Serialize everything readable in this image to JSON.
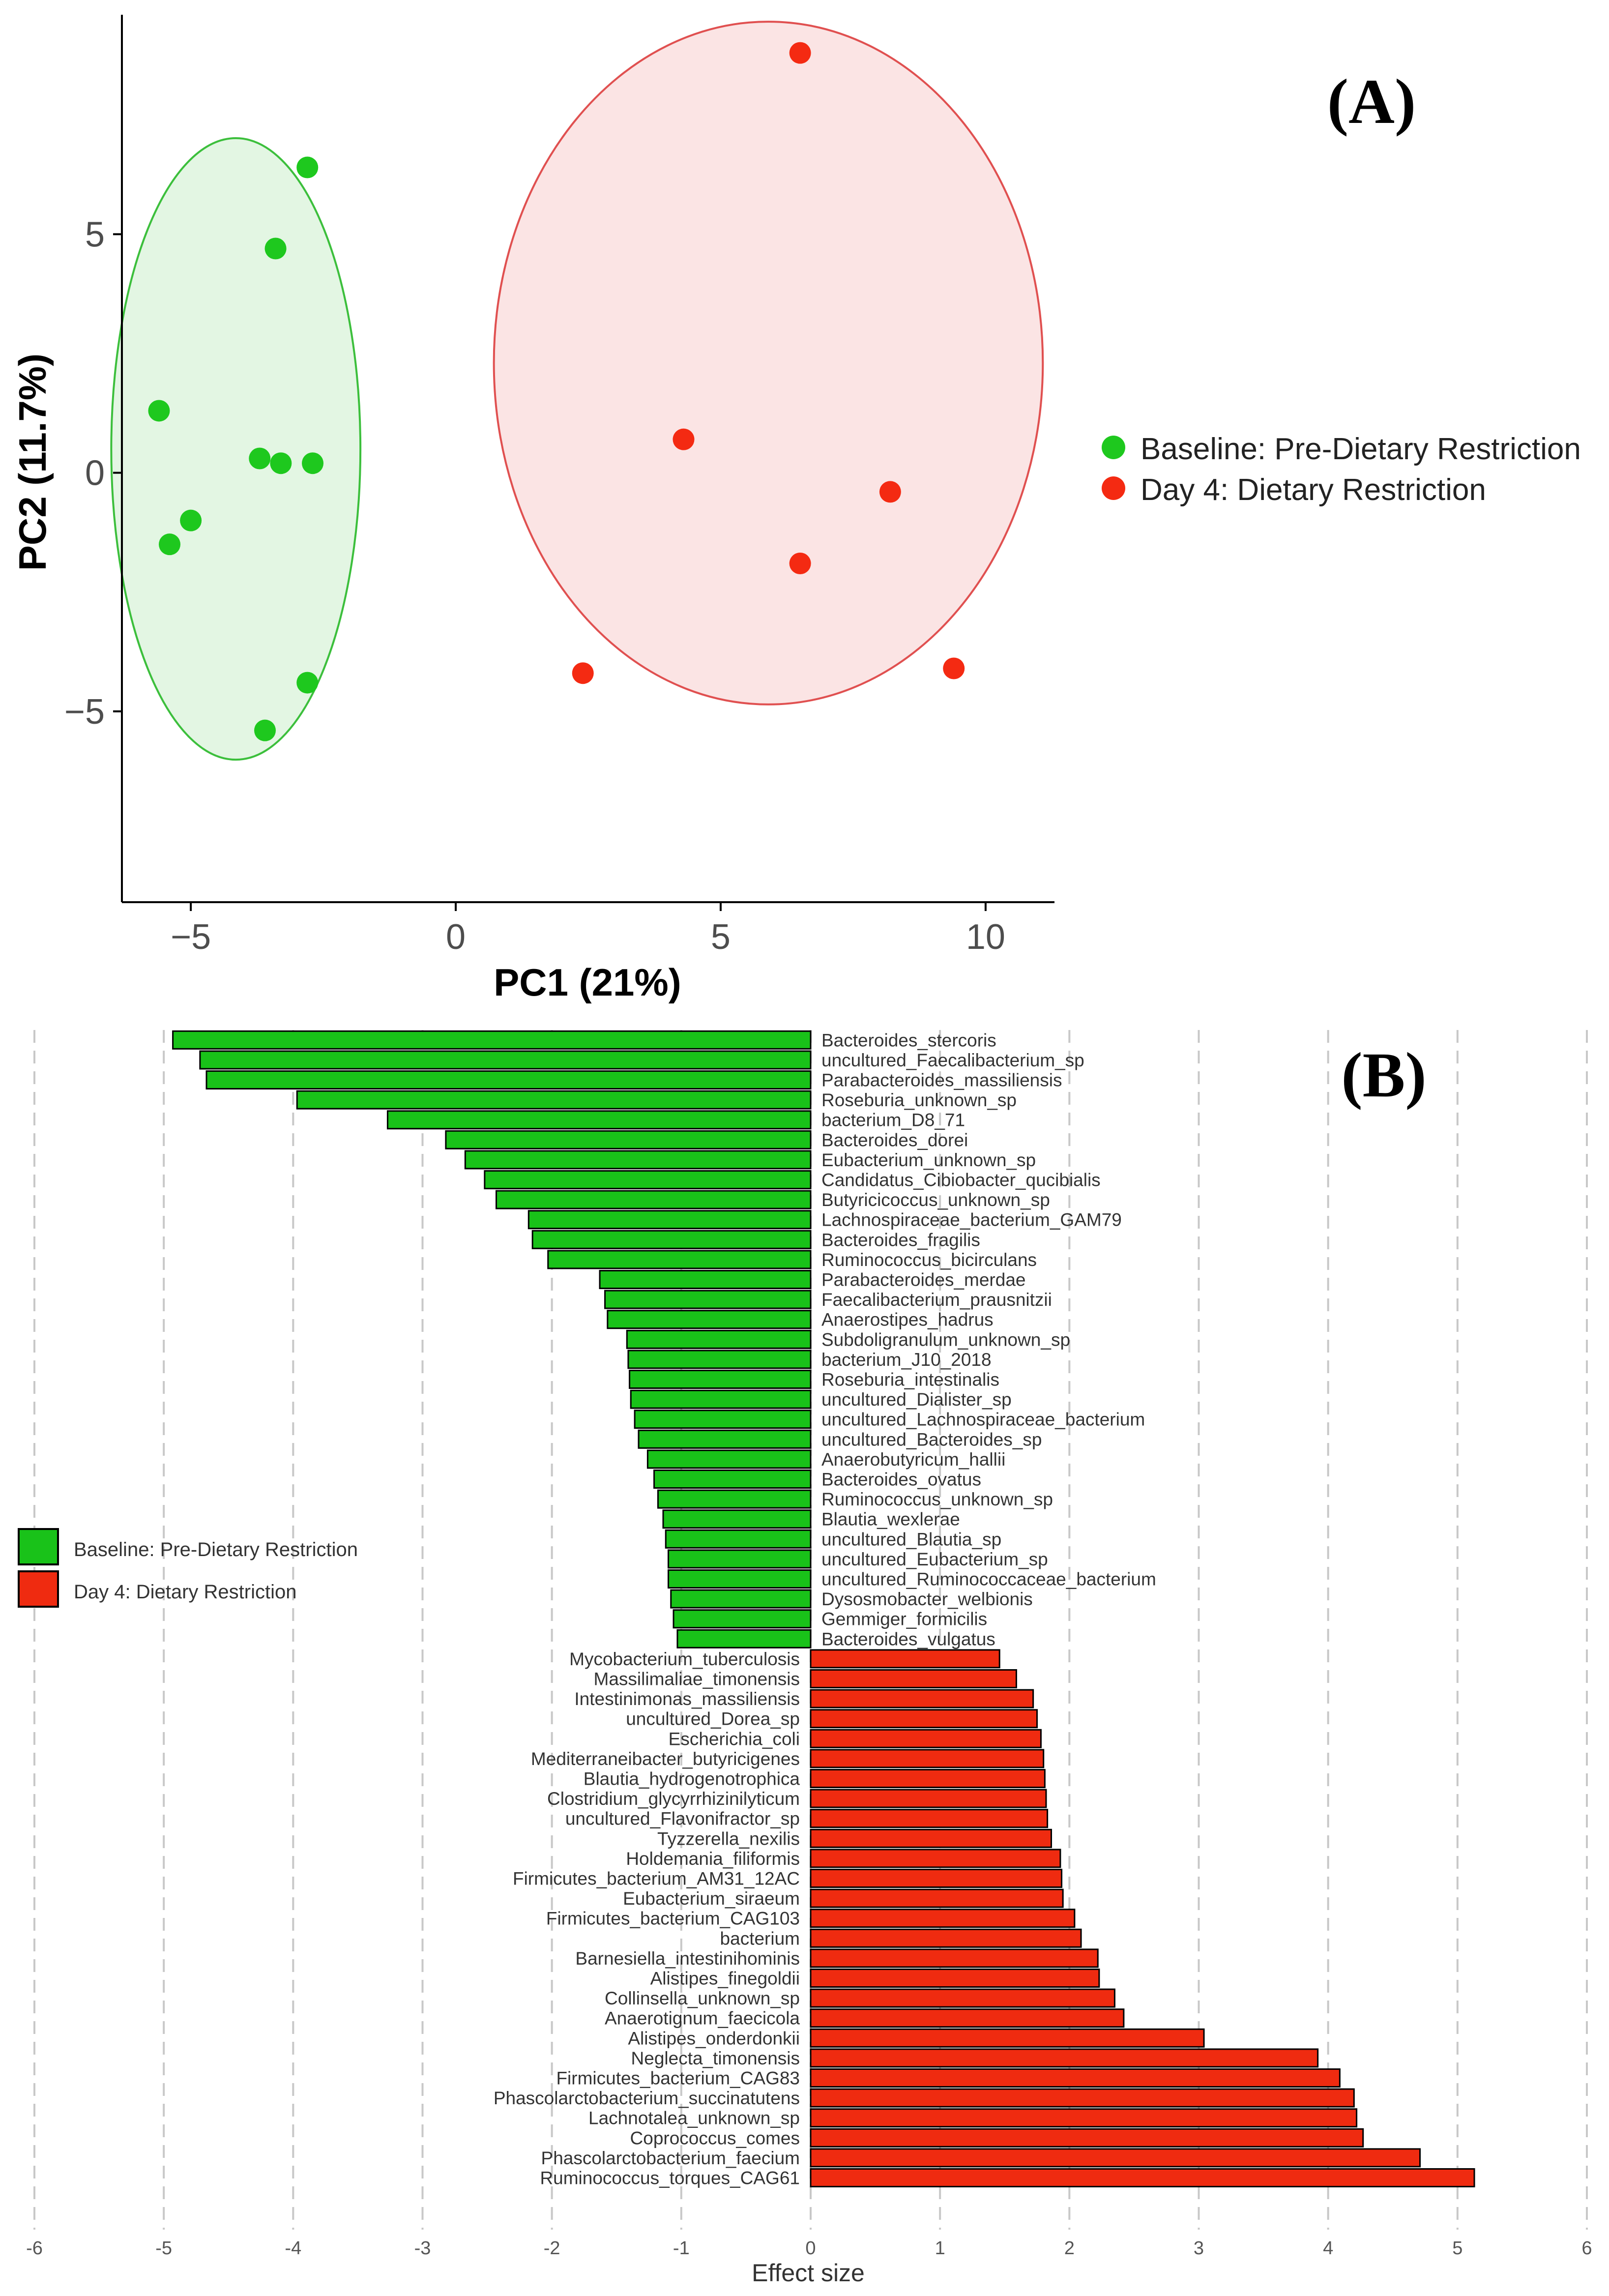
{
  "chart_data": [
    {
      "type": "scatter",
      "panel_label": "(A)",
      "xlabel": "PC1 (21%)",
      "ylabel": "PC2 (11.7%)",
      "xlim": [
        -6.3,
        11.3
      ],
      "ylim": [
        -9.0,
        9.6
      ],
      "xticks": [
        -5,
        0,
        5,
        10
      ],
      "xtick_labels": [
        "−5",
        "0",
        "5",
        "10"
      ],
      "yticks": [
        -5,
        0,
        5
      ],
      "ytick_labels": [
        "−5",
        "0",
        "5"
      ],
      "grid": false,
      "legend_position": "right",
      "series": [
        {
          "name": "Baseline: Pre-Dietary Restriction",
          "color": "#1ec81e",
          "ellipse_color": "#3cbf3c",
          "ellipse_fill": "#e3f6e3",
          "points": [
            {
              "x": -2.8,
              "y": 6.4
            },
            {
              "x": -3.4,
              "y": 4.7
            },
            {
              "x": -5.6,
              "y": 1.3
            },
            {
              "x": -3.7,
              "y": 0.3
            },
            {
              "x": -3.3,
              "y": 0.2
            },
            {
              "x": -2.7,
              "y": 0.2
            },
            {
              "x": -5.0,
              "y": -1.0
            },
            {
              "x": -5.4,
              "y": -1.5
            },
            {
              "x": -2.8,
              "y": -4.4
            },
            {
              "x": -3.6,
              "y": -5.4
            }
          ]
        },
        {
          "name": "Day 4: Dietary Restriction",
          "color": "#f42a12",
          "ellipse_color": "#e05050",
          "ellipse_fill": "#fbe4e4",
          "points": [
            {
              "x": 6.5,
              "y": 8.8
            },
            {
              "x": 4.3,
              "y": 0.7
            },
            {
              "x": 8.2,
              "y": -0.4
            },
            {
              "x": 6.5,
              "y": -1.9
            },
            {
              "x": 2.4,
              "y": -4.2
            },
            {
              "x": 9.4,
              "y": -4.1
            }
          ]
        }
      ]
    },
    {
      "type": "bar",
      "orientation": "horizontal",
      "panel_label": "(B)",
      "xlabel": "Effect size",
      "ylabel": "",
      "xlim": [
        -6,
        6
      ],
      "xticks": [
        -6,
        -5,
        -4,
        -3,
        -2,
        -1,
        0,
        1,
        2,
        3,
        4,
        5,
        6
      ],
      "grid": "vertical dashed",
      "legend_position": "left",
      "series": [
        {
          "name": "Baseline: Pre-Dietary Restriction",
          "color": "#19c219",
          "categories": [
            "Bacteroides_stercoris",
            "uncultured_Faecalibacterium_sp",
            "Parabacteroides_massiliensis",
            "Roseburia_unknown_sp",
            "bacterium_D8_71",
            "Bacteroides_dorei",
            "Eubacterium_unknown_sp",
            "Candidatus_Cibiobacter_qucibialis",
            "Butyricicoccus_unknown_sp",
            "Lachnospiraceae_bacterium_GAM79",
            "Bacteroides_fragilis",
            "Ruminococcus_bicirculans",
            "Parabacteroides_merdae",
            "Faecalibacterium_prausnitzii",
            "Anaerostipes_hadrus",
            "Subdoligranulum_unknown_sp",
            "bacterium_J10_2018",
            "Roseburia_intestinalis",
            "uncultured_Dialister_sp",
            "uncultured_Lachnospiraceae_bacterium",
            "uncultured_Bacteroides_sp",
            "Anaerobutyricum_hallii",
            "Bacteroides_ovatus",
            "Ruminococcus_unknown_sp",
            "Blautia_wexlerae",
            "uncultured_Blautia_sp",
            "uncultured_Eubacterium_sp",
            "uncultured_Ruminococcaceae_bacterium",
            "Dysosmobacter_welbionis",
            "Gemmiger_formicilis",
            "Bacteroides_vulgatus"
          ],
          "values": [
            -4.93,
            -4.72,
            -4.67,
            -3.97,
            -3.27,
            -2.82,
            -2.67,
            -2.52,
            -2.43,
            -2.18,
            -2.15,
            -2.03,
            -1.63,
            -1.59,
            -1.57,
            -1.42,
            -1.41,
            -1.4,
            -1.39,
            -1.36,
            -1.33,
            -1.26,
            -1.21,
            -1.18,
            -1.14,
            -1.12,
            -1.1,
            -1.1,
            -1.08,
            -1.06,
            -1.03
          ]
        },
        {
          "name": "Day 4: Dietary Restriction",
          "color": "#ef2b10",
          "categories": [
            "Mycobacterium_tuberculosis",
            "Massilimaliae_timonensis",
            "Intestinimonas_massiliensis",
            "uncultured_Dorea_sp",
            "Escherichia_coli",
            "Mediterraneibacter_butyricigenes",
            "Blautia_hydrogenotrophica",
            "Clostridium_glycyrrhizinilyticum",
            "uncultured_Flavonifractor_sp",
            "Tyzzerella_nexilis",
            "Holdemania_filiformis",
            "Firmicutes_bacterium_AM31_12AC",
            "Eubacterium_siraeum",
            "Firmicutes_bacterium_CAG103",
            "bacterium",
            "Barnesiella_intestinihominis",
            "Alistipes_finegoldii",
            "Collinsella_unknown_sp",
            "Anaerotignum_faecicola",
            "Alistipes_onderdonkii",
            "Neglecta_timonensis",
            "Firmicutes_bacterium_CAG83",
            "Phascolarctobacterium_succinatutens",
            "Lachnotalea_unknown_sp",
            "Coprococcus_comes",
            "Phascolarctobacterium_faecium",
            "Ruminococcus_torques_CAG61"
          ],
          "values": [
            1.46,
            1.59,
            1.72,
            1.75,
            1.78,
            1.8,
            1.81,
            1.82,
            1.83,
            1.86,
            1.93,
            1.94,
            1.95,
            2.04,
            2.09,
            2.22,
            2.23,
            2.35,
            2.42,
            3.04,
            3.92,
            4.09,
            4.2,
            4.22,
            4.27,
            4.71,
            5.13
          ]
        }
      ]
    }
  ]
}
